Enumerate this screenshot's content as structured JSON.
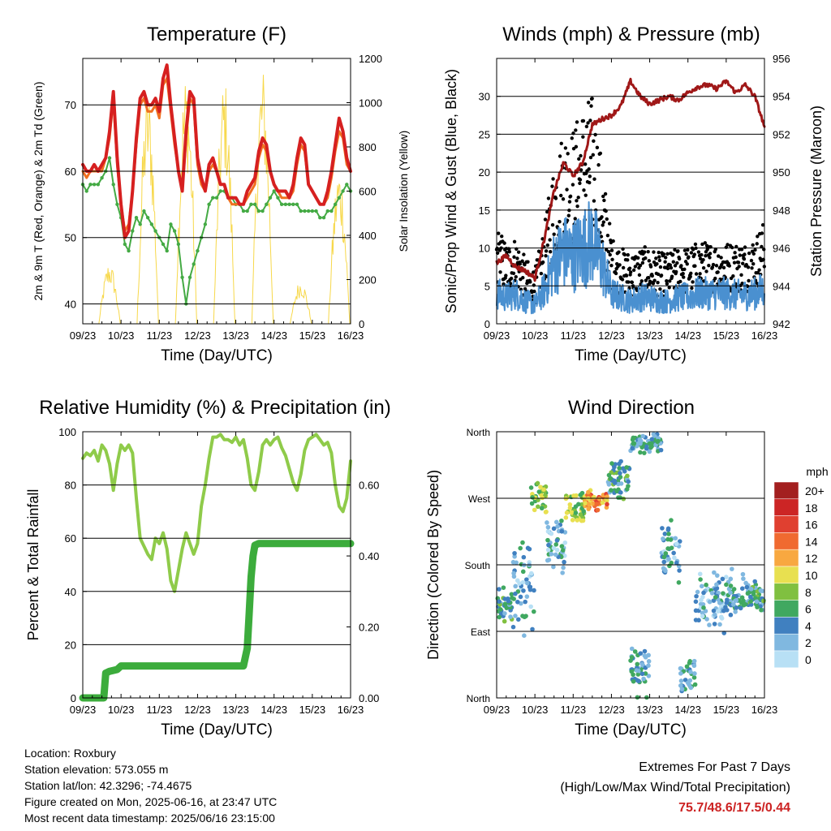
{
  "charts": {
    "temperature": {
      "title": "Temperature (F)",
      "ylabel_left": "2m & 9m T (Red, Orange) & 2m Td (Green)",
      "ylabel_right": "Solar Insolation (Yellow)",
      "xlabel": "Time (Day/UTC)"
    },
    "winds": {
      "title": "Winds (mph) & Pressure (mb)",
      "ylabel_left": "Sonic/Prop Wind & Gust (Blue, Black)",
      "ylabel_right": "Station Pressure (Maroon)",
      "xlabel": "Time (Day/UTC)"
    },
    "humidity": {
      "title": "Relative Humidity (%) & Precipitation (in)",
      "ylabel_left": "Percent & Total Rainfall",
      "xlabel": "Time (Day/UTC)"
    },
    "direction": {
      "title": "Wind Direction",
      "ylabel_left": "Direction (Colored By Speed)",
      "xlabel": "Time (Day/UTC)",
      "legend_title": "mph"
    }
  },
  "chart_data": [
    {
      "type": "line",
      "title": "Temperature (F)",
      "xlabel": "Time (Day/UTC)",
      "x_ticks": [
        "09/23",
        "10/23",
        "11/23",
        "12/23",
        "13/23",
        "14/23",
        "15/23",
        "16/23"
      ],
      "x": [
        0,
        0.1,
        0.2,
        0.3,
        0.4,
        0.5,
        0.6,
        0.7,
        0.8,
        0.9,
        1.0,
        1.1,
        1.2,
        1.3,
        1.4,
        1.5,
        1.6,
        1.7,
        1.8,
        1.9,
        2.0,
        2.1,
        2.2,
        2.3,
        2.4,
        2.5,
        2.6,
        2.7,
        2.8,
        2.9,
        3.0,
        3.1,
        3.2,
        3.3,
        3.4,
        3.5,
        3.6,
        3.7,
        3.8,
        3.9,
        4.0,
        4.1,
        4.2,
        4.3,
        4.4,
        4.5,
        4.6,
        4.7,
        4.8,
        4.9,
        5.0,
        5.1,
        5.2,
        5.3,
        5.4,
        5.5,
        5.6,
        5.7,
        5.8,
        5.9,
        6.0,
        6.1,
        6.2,
        6.3,
        6.4,
        6.5,
        6.6,
        6.7,
        6.8,
        6.9,
        7.0
      ],
      "ylim": [
        37,
        77
      ],
      "y2lim": [
        0,
        1200
      ],
      "left_ticks": [
        40,
        50,
        60,
        70
      ],
      "right_ticks": [
        0,
        200,
        400,
        600,
        800,
        1000,
        1200
      ],
      "series": [
        {
          "name": "2m T",
          "color": "#d62020",
          "values": [
            61,
            60,
            60,
            61,
            60,
            61,
            62,
            66,
            72,
            62,
            55,
            50,
            51,
            57,
            65,
            71,
            72,
            70,
            70,
            71,
            69,
            74,
            76,
            70,
            65,
            60,
            57,
            66,
            72,
            71,
            62,
            59,
            57,
            61,
            62,
            60,
            58,
            58,
            56,
            56,
            56,
            55,
            55,
            57,
            58,
            59,
            63,
            65,
            64,
            60,
            58,
            57,
            57,
            57,
            56,
            58,
            62,
            65,
            64,
            58,
            57,
            56,
            55,
            55,
            57,
            60,
            64,
            68,
            66,
            62,
            60
          ]
        },
        {
          "name": "9m T",
          "color": "#f07020",
          "values": [
            60,
            59,
            60,
            60,
            60,
            60,
            62,
            65,
            71,
            61,
            55,
            51,
            52,
            57,
            64,
            70,
            71,
            69,
            69,
            70,
            68,
            73,
            74,
            69,
            64,
            60,
            57,
            65,
            71,
            70,
            61,
            58,
            57,
            60,
            61,
            60,
            58,
            58,
            56,
            55,
            55,
            55,
            55,
            56,
            57,
            58,
            62,
            64,
            63,
            60,
            58,
            57,
            56,
            56,
            56,
            57,
            61,
            64,
            63,
            58,
            57,
            56,
            55,
            55,
            56,
            59,
            63,
            66,
            65,
            61,
            60
          ]
        },
        {
          "name": "2m Td",
          "color": "#44aa44",
          "values": [
            58,
            57,
            58,
            58,
            58,
            59,
            60,
            62,
            58,
            55,
            53,
            49,
            48,
            51,
            53,
            52,
            54,
            53,
            52,
            51,
            50,
            49,
            48,
            52,
            51,
            49,
            44,
            40,
            44,
            46,
            48,
            50,
            52,
            55,
            56,
            56,
            57,
            57,
            56,
            56,
            55,
            55,
            54,
            54,
            55,
            55,
            54,
            54,
            55,
            56,
            57,
            56,
            55,
            55,
            55,
            55,
            55,
            54,
            54,
            54,
            54,
            54,
            53,
            53,
            54,
            54,
            55,
            56,
            57,
            58,
            57
          ]
        }
      ],
      "solar_days": [
        {
          "day": 0,
          "peak": 280
        },
        {
          "day": 1,
          "peak": 1080
        },
        {
          "day": 2,
          "peak": 1150
        },
        {
          "day": 3,
          "peak": 1120
        },
        {
          "day": 4,
          "peak": 1170
        },
        {
          "day": 5,
          "peak": 200
        },
        {
          "day": 6,
          "peak": 720
        },
        {
          "day": 7,
          "peak": 760
        }
      ]
    },
    {
      "type": "line",
      "title": "Winds (mph) & Pressure (mb)",
      "xlabel": "Time (Day/UTC)",
      "x_ticks": [
        "09/23",
        "10/23",
        "11/23",
        "12/23",
        "13/23",
        "14/23",
        "15/23",
        "16/23"
      ],
      "ylim": [
        0,
        35
      ],
      "y2lim": [
        942,
        956
      ],
      "left_ticks": [
        0,
        5,
        10,
        15,
        20,
        25,
        30
      ],
      "right_ticks": [
        942,
        944,
        946,
        948,
        950,
        952,
        954,
        956
      ],
      "x": [
        0,
        0.25,
        0.5,
        0.75,
        1.0,
        1.25,
        1.5,
        1.75,
        2.0,
        2.25,
        2.5,
        2.75,
        3.0,
        3.25,
        3.5,
        3.75,
        4.0,
        4.25,
        4.5,
        4.75,
        5.0,
        5.25,
        5.5,
        5.75,
        6.0,
        6.25,
        6.5,
        6.75,
        7.0
      ],
      "pressure": [
        945.2,
        945.6,
        945.0,
        944.8,
        944.4,
        946.5,
        949.0,
        950.5,
        949.8,
        950.5,
        952.5,
        952.8,
        953.0,
        953.5,
        954.8,
        954.0,
        953.6,
        953.8,
        954.0,
        953.8,
        954.2,
        954.5,
        954.6,
        954.4,
        954.8,
        954.2,
        954.6,
        954.0,
        952.4
      ],
      "wind_mean": [
        4.0,
        3.5,
        4.0,
        3.0,
        2.5,
        4.5,
        8.0,
        9.5,
        9.0,
        10.0,
        11.0,
        8.0,
        4.0,
        3.5,
        3.0,
        3.5,
        3.5,
        3.0,
        3.0,
        3.5,
        3.5,
        4.0,
        4.0,
        4.0,
        4.0,
        3.8,
        3.8,
        4.0,
        4.5
      ],
      "gust_mean": [
        9.0,
        7.5,
        8.0,
        6.0,
        5.0,
        9.0,
        15.0,
        18.0,
        18.0,
        20.0,
        21.0,
        15.0,
        8.0,
        7.0,
        6.5,
        7.0,
        7.0,
        6.5,
        6.5,
        7.0,
        7.0,
        7.5,
        7.5,
        7.5,
        7.5,
        7.5,
        7.5,
        8.0,
        9.5
      ]
    },
    {
      "type": "line",
      "title": "Relative Humidity (%) & Precipitation (in)",
      "xlabel": "Time (Day/UTC)",
      "x_ticks": [
        "09/23",
        "10/23",
        "11/23",
        "12/23",
        "13/23",
        "14/23",
        "15/23",
        "16/23"
      ],
      "ylim": [
        0,
        100
      ],
      "y2lim": [
        0,
        0.75
      ],
      "left_ticks": [
        0,
        20,
        40,
        60,
        80,
        100
      ],
      "right_ticks": [
        "0.00",
        "0.20",
        "0.40",
        "0.60"
      ],
      "series": [
        {
          "name": "RH",
          "color": "#8fcb4a",
          "x": [
            0,
            0.1,
            0.2,
            0.3,
            0.4,
            0.5,
            0.6,
            0.7,
            0.8,
            0.9,
            1.0,
            1.1,
            1.2,
            1.3,
            1.4,
            1.5,
            1.6,
            1.7,
            1.8,
            1.9,
            2.0,
            2.1,
            2.2,
            2.3,
            2.4,
            2.5,
            2.6,
            2.7,
            2.8,
            2.9,
            3.0,
            3.1,
            3.2,
            3.3,
            3.4,
            3.5,
            3.6,
            3.7,
            3.8,
            3.9,
            4.0,
            4.1,
            4.2,
            4.3,
            4.4,
            4.5,
            4.6,
            4.7,
            4.8,
            4.9,
            5.0,
            5.1,
            5.2,
            5.3,
            5.4,
            5.5,
            5.6,
            5.7,
            5.8,
            5.9,
            6.0,
            6.1,
            6.2,
            6.3,
            6.4,
            6.5,
            6.6,
            6.7,
            6.8,
            6.9,
            7.0
          ],
          "values": [
            90,
            92,
            91,
            93,
            89,
            95,
            93,
            88,
            78,
            88,
            95,
            93,
            95,
            92,
            75,
            60,
            57,
            54,
            52,
            60,
            58,
            62,
            56,
            44,
            40,
            48,
            56,
            62,
            58,
            54,
            58,
            72,
            80,
            90,
            98,
            98,
            99,
            97,
            97,
            96,
            98,
            95,
            97,
            90,
            80,
            78,
            85,
            95,
            97,
            95,
            97,
            98,
            94,
            91,
            86,
            81,
            78,
            84,
            93,
            97,
            98,
            99,
            97,
            95,
            96,
            92,
            80,
            72,
            70,
            75,
            89
          ]
        },
        {
          "name": "Total Rainfall",
          "color": "#3cac3c",
          "x": [
            0,
            0.55,
            0.6,
            0.7,
            0.9,
            1.0,
            1.2,
            4.0,
            4.2,
            4.3,
            4.35,
            4.4,
            4.45,
            4.5,
            4.6,
            5.0,
            6.0,
            7.0
          ],
          "values": [
            0.0,
            0.0,
            0.07,
            0.075,
            0.08,
            0.09,
            0.09,
            0.09,
            0.09,
            0.14,
            0.24,
            0.34,
            0.4,
            0.43,
            0.435,
            0.435,
            0.435,
            0.435
          ]
        }
      ]
    },
    {
      "type": "scatter",
      "title": "Wind Direction",
      "xlabel": "Time (Day/UTC)",
      "x_ticks": [
        "09/23",
        "10/23",
        "11/23",
        "12/23",
        "13/23",
        "14/23",
        "15/23",
        "16/23"
      ],
      "y_ticks": [
        "North",
        "East",
        "South",
        "West",
        "North"
      ],
      "ylim": [
        0,
        360
      ],
      "legend_title": "mph",
      "legend_labels": [
        "20+",
        "18",
        "16",
        "14",
        "12",
        "10",
        "8",
        "6",
        "4",
        "2",
        "0"
      ],
      "legend_colors": [
        "#a31f1f",
        "#cc2525",
        "#e04030",
        "#f06a30",
        "#f8a840",
        "#e8e050",
        "#80c040",
        "#40a860",
        "#4080c0",
        "#80b8e0",
        "#b8e0f5"
      ],
      "clusters": [
        {
          "x0": 0.0,
          "x1": 0.4,
          "dir": 127,
          "spread": 25,
          "speed": 5
        },
        {
          "x0": 0.4,
          "x1": 1.0,
          "dir": 150,
          "spread": 70,
          "speed": 3
        },
        {
          "x0": 0.9,
          "x1": 1.3,
          "dir": 270,
          "spread": 25,
          "speed": 8
        },
        {
          "x0": 1.3,
          "x1": 1.8,
          "dir": 200,
          "spread": 50,
          "speed": 3
        },
        {
          "x0": 1.8,
          "x1": 2.3,
          "dir": 255,
          "spread": 25,
          "speed": 8
        },
        {
          "x0": 2.3,
          "x1": 2.9,
          "dir": 265,
          "spread": 18,
          "speed": 13
        },
        {
          "x0": 2.9,
          "x1": 3.5,
          "dir": 295,
          "spread": 30,
          "speed": 5
        },
        {
          "x0": 3.5,
          "x1": 4.0,
          "dir": 40,
          "spread": 30,
          "speed": 4
        },
        {
          "x0": 3.5,
          "x1": 4.3,
          "dir": 345,
          "spread": 18,
          "speed": 4
        },
        {
          "x0": 4.3,
          "x1": 4.8,
          "dir": 200,
          "spread": 50,
          "speed": 3
        },
        {
          "x0": 4.8,
          "x1": 5.2,
          "dir": 30,
          "spread": 25,
          "speed": 4
        },
        {
          "x0": 5.2,
          "x1": 6.0,
          "dir": 130,
          "spread": 45,
          "speed": 3
        },
        {
          "x0": 6.0,
          "x1": 6.6,
          "dir": 140,
          "spread": 40,
          "speed": 4
        },
        {
          "x0": 6.6,
          "x1": 7.0,
          "dir": 135,
          "spread": 25,
          "speed": 5
        }
      ]
    }
  ],
  "info": {
    "location": "Location: Roxbury",
    "elevation": "Station elevation: 573.055 m",
    "latlon": "Station lat/lon: 42.3296; -74.4675",
    "created": "Figure created on Mon, 2025-06-16, at 23:47 UTC",
    "latest": "Most recent data timestamp: 2025/06/16 23:15:00"
  },
  "extremes": {
    "title": "Extremes For Past 7 Days",
    "subtitle": "(High/Low/Max Wind/Total Precipitation)",
    "values": "75.7/48.6/17.5/0.44"
  }
}
